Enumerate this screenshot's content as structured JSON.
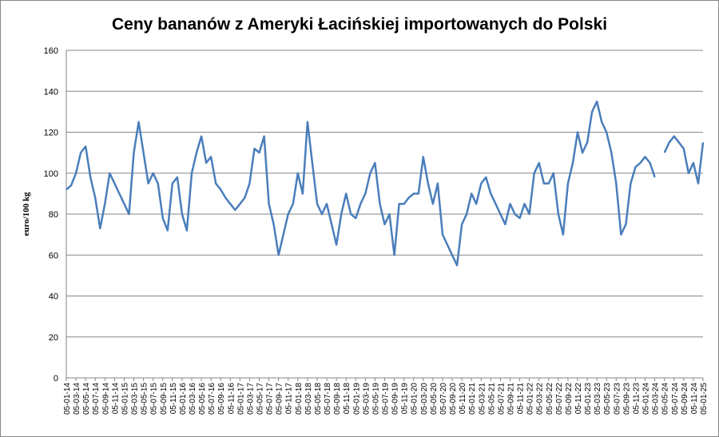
{
  "chart_data": {
    "type": "line",
    "title": "Ceny bananów z Ameryki Łacińskiej importowanych do Polski",
    "y_label": "euro/100 kg",
    "categories": [
      "05-01-14",
      null,
      "05-03-14",
      null,
      "05-05-14",
      null,
      "05-07-14",
      null,
      "05-09-14",
      null,
      "05-11-14",
      null,
      "05-01-15",
      null,
      "05-03-15",
      null,
      "05-05-15",
      null,
      "05-07-15",
      null,
      "05-09-15",
      null,
      "05-11-15",
      null,
      "05-01-16",
      null,
      "05-03-16",
      null,
      "05-05-16",
      null,
      "05-07-16",
      null,
      "05-09-16",
      null,
      "05-11-16",
      null,
      "05-01-17",
      null,
      "05-03-17",
      null,
      "05-05-17",
      null,
      "05-07-17",
      null,
      "05-09-17",
      null,
      "05-11-17",
      null,
      "05-01-18",
      null,
      "05-03-18",
      null,
      "05-05-18",
      null,
      "05-07-18",
      null,
      "05-09-18",
      null,
      "05-11-18",
      null,
      "05-01-19",
      null,
      "05-03-19",
      null,
      "05-05-19",
      null,
      "05-07-19",
      null,
      "05-09-19",
      null,
      "05-11-19",
      null,
      "05-01-20",
      null,
      "05-03-20",
      null,
      "05-05-20",
      null,
      "05-07-20",
      null,
      "05-09-20",
      null,
      "05-11-20",
      null,
      "05-01-21",
      null,
      "05-03-21",
      null,
      "05-05-21",
      null,
      "05-07-21",
      null,
      "05-09-21",
      null,
      "05-11-21",
      null,
      "05-01-22",
      null,
      "05-03-22",
      null,
      "05-05-22",
      null,
      "05-07-22",
      null,
      "05-09-22",
      null,
      "05-11-22",
      null,
      "05-01-23",
      null,
      "05-03-23",
      null,
      "05-05-23",
      null,
      "05-07-23",
      null,
      "05-09-23",
      null,
      "05-11-23",
      null,
      "05-01-24",
      null,
      "05-03-24",
      null,
      "05-05-24",
      null,
      "05-07-24",
      null,
      "05-09-24",
      null,
      "05-11-24",
      null,
      "05-01-25"
    ],
    "series": [
      {
        "color": "#4a7ebb",
        "values": [
          92,
          94,
          100,
          110,
          113,
          98,
          88,
          73,
          85,
          100,
          95,
          90,
          85,
          80,
          110,
          125,
          110,
          95,
          100,
          95,
          78,
          72,
          95,
          98,
          80,
          72,
          100,
          110,
          118,
          105,
          108,
          95,
          92,
          88,
          85,
          82,
          85,
          88,
          95,
          112,
          110,
          118,
          85,
          75,
          60,
          70,
          80,
          85,
          100,
          90,
          125,
          105,
          85,
          80,
          85,
          75,
          65,
          80,
          90,
          80,
          78,
          85,
          90,
          100,
          105,
          85,
          75,
          80,
          60,
          85,
          85,
          88,
          90,
          90,
          108,
          95,
          85,
          95,
          70,
          65,
          60,
          55,
          75,
          80,
          90,
          85,
          95,
          98,
          90,
          85,
          80,
          75,
          85,
          80,
          78,
          85,
          80,
          100,
          105,
          95,
          95,
          100,
          80,
          70,
          95,
          105,
          120,
          110,
          115,
          130,
          135,
          125,
          120,
          110,
          95,
          70,
          75,
          95,
          103,
          105,
          108,
          105,
          98,
          null,
          110,
          115,
          118,
          115,
          112,
          100,
          105,
          95,
          115
        ]
      }
    ],
    "ylim": [
      0,
      160
    ],
    "yticks": [
      0,
      20,
      40,
      60,
      80,
      100,
      120,
      140,
      160
    ],
    "grid": true
  }
}
